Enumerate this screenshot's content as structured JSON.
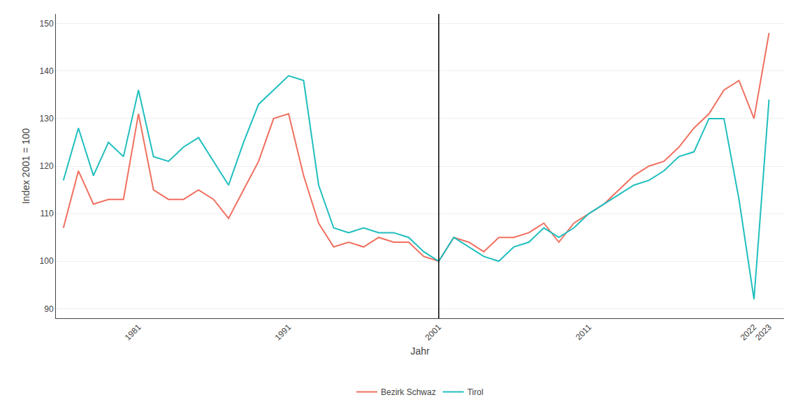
{
  "chart_data": {
    "type": "line",
    "title": "",
    "xlabel": "Jahr",
    "ylabel": "Index 2001 = 100",
    "x": [
      1976,
      1977,
      1978,
      1979,
      1980,
      1981,
      1982,
      1983,
      1984,
      1985,
      1986,
      1987,
      1988,
      1989,
      1990,
      1991,
      1992,
      1993,
      1994,
      1995,
      1996,
      1997,
      1998,
      1999,
      2000,
      2001,
      2002,
      2003,
      2004,
      2005,
      2006,
      2007,
      2008,
      2009,
      2010,
      2011,
      2012,
      2013,
      2014,
      2015,
      2016,
      2017,
      2018,
      2019,
      2020,
      2021,
      2022,
      2023
    ],
    "series": [
      {
        "name": "Bezirk Schwaz",
        "color": "#F07060",
        "values": [
          107,
          119,
          112,
          113,
          113,
          131,
          115,
          113,
          113,
          115,
          113,
          109,
          115,
          121,
          130,
          131,
          118,
          108,
          103,
          104,
          103,
          105,
          104,
          104,
          101,
          100,
          105,
          104,
          102,
          105,
          105,
          106,
          108,
          104,
          108,
          110,
          112,
          115,
          118,
          120,
          121,
          124,
          128,
          131,
          136,
          138,
          130,
          148
        ]
      },
      {
        "name": "Tirol",
        "color": "#20BEBE",
        "values": [
          117,
          128,
          118,
          125,
          122,
          136,
          122,
          121,
          124,
          126,
          121,
          116,
          125,
          133,
          136,
          139,
          138,
          116,
          107,
          106,
          107,
          106,
          106,
          105,
          102,
          100,
          105,
          103,
          101,
          100,
          103,
          104,
          107,
          105,
          107,
          110,
          112,
          114,
          116,
          117,
          119,
          122,
          123,
          130,
          130,
          113,
          92,
          134
        ]
      }
    ],
    "xlim": [
      1975.5,
      2024.0
    ],
    "xticks": [
      1981,
      1991,
      2001,
      2011,
      2022,
      2023
    ],
    "ylim": [
      88,
      152
    ],
    "yticks": [
      90,
      100,
      110,
      120,
      130,
      140,
      150
    ],
    "vline_x": 2001,
    "grid": true,
    "legend": "bottom"
  }
}
